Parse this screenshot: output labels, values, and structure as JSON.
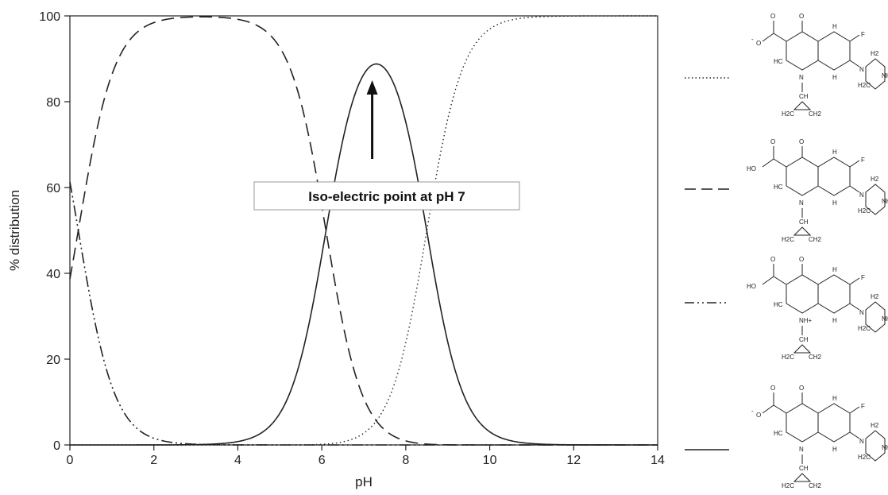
{
  "chart_data": {
    "type": "line",
    "title": "",
    "xlabel": "pH",
    "ylabel": "% distribution",
    "xlim": [
      0,
      14
    ],
    "ylim": [
      0,
      100
    ],
    "xticks": [
      "0",
      "2",
      "4",
      "6",
      "8",
      "10",
      "12",
      "14"
    ],
    "yticks": [
      "0",
      "20",
      "40",
      "60",
      "80",
      "100"
    ],
    "pKa": [
      0.2,
      6.1,
      8.5
    ],
    "grid": false,
    "legend_placement": "right (line-style key beside molecular structures)",
    "series": [
      {
        "style": "dash-dot-dot",
        "species": "cationic carboxylic acid (NH+ ring, COOH)",
        "x": [
          0,
          0.5,
          1,
          1.5,
          2,
          2.5,
          3
        ],
        "values": [
          38.7,
          16.6,
          5.9,
          1.9,
          0.6,
          0.2,
          0.1
        ]
      },
      {
        "style": "dashed",
        "species": "neutral carboxylic acid (COOH)",
        "x": [
          0,
          0.5,
          1,
          1.5,
          2,
          2.5,
          3,
          3.5,
          4,
          4.5,
          5,
          5.5,
          6,
          6.5,
          7,
          7.5,
          8,
          8.5,
          9,
          9.5,
          10
        ],
        "values": [
          61.3,
          83.4,
          94.1,
          98.0,
          99.3,
          99.7,
          99.8,
          99.5,
          98.5,
          95.5,
          87.0,
          66.8,
          38.8,
          16.4,
          5.9,
          2.0,
          0.6,
          0.2,
          0.1,
          0,
          0
        ]
      },
      {
        "style": "solid",
        "species": "zwitterion (carboxylate, NH2+ piperazine)",
        "x": [
          3,
          3.5,
          4,
          4.5,
          5,
          5.5,
          6,
          6.5,
          7,
          7.5,
          8,
          8.5,
          9,
          9.5,
          10,
          10.5,
          11
        ],
        "values": [
          0.1,
          0.5,
          1.5,
          4.5,
          13.0,
          33.0,
          61.0,
          82.0,
          92.0,
          91.0,
          75.0,
          50.0,
          24.0,
          9.0,
          3.0,
          1.0,
          0.3
        ]
      },
      {
        "style": "dotted",
        "species": "anionic carboxylate",
        "x": [
          6,
          6.5,
          7,
          7.5,
          8,
          8.5,
          9,
          9.5,
          10,
          10.5,
          11,
          11.5,
          12
        ],
        "values": [
          0,
          0.2,
          1.5,
          6.5,
          24.0,
          50.0,
          76.0,
          91.0,
          97.0,
          99.0,
          99.7,
          99.9,
          100
        ]
      }
    ],
    "annotations": [
      {
        "text": "Iso-electric point at pH 7",
        "arrow_target_x": 7.2,
        "arrow_target_y": 85
      }
    ],
    "legend_key_order": [
      "dotted",
      "dashed",
      "dash-dot-dot",
      "solid"
    ]
  },
  "structure_text": {
    "fluoro": "F",
    "oxo": "O",
    "carboxylate_o": "O",
    "charge_minus": "-",
    "hydroxyl": "HO",
    "ring_n1": "N",
    "ring_n_protonated": "NH+",
    "piperazine_n": "N",
    "piperazine_nh": "NH",
    "ch": "CH",
    "h": "H",
    "hc": "HC",
    "h2c": "H2C",
    "ch2": "CH2",
    "h2": "H2"
  }
}
